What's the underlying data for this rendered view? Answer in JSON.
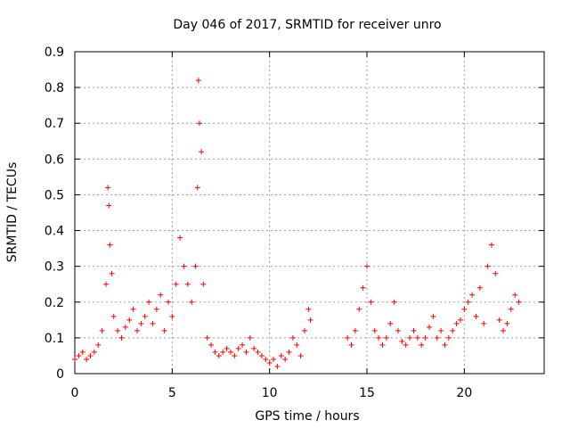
{
  "chart_data": {
    "type": "scatter",
    "title": "Day 046 of 2017, SRMTID for receiver unro",
    "xlabel": "GPS time / hours",
    "ylabel": "SRMTID / TECUs",
    "xlim": [
      0,
      24.1
    ],
    "ylim": [
      0,
      0.9
    ],
    "x_ticks": [
      0,
      5,
      10,
      15,
      20
    ],
    "x_tick_labels": [
      "0",
      "5",
      "10",
      "15",
      "20"
    ],
    "y_ticks": [
      0,
      0.1,
      0.2,
      0.3,
      0.4,
      0.5,
      0.6,
      0.7,
      0.8,
      0.9
    ],
    "y_tick_labels": [
      "0",
      "0.1",
      "0.2",
      "0.3",
      "0.4",
      "0.5",
      "0.6",
      "0.7",
      "0.8",
      "0.9"
    ],
    "grid": true,
    "marker": "+",
    "color": "#ff0000",
    "series": [
      {
        "name": "SRMTID",
        "x": [
          0.0,
          0.2,
          0.4,
          0.6,
          0.8,
          1.0,
          1.2,
          1.4,
          1.6,
          1.7,
          1.75,
          1.8,
          1.9,
          2.0,
          2.2,
          2.4,
          2.6,
          2.8,
          3.0,
          3.2,
          3.4,
          3.6,
          3.8,
          4.0,
          4.2,
          4.4,
          4.6,
          4.8,
          5.0,
          5.2,
          5.4,
          5.6,
          5.8,
          6.0,
          6.2,
          6.3,
          6.35,
          6.4,
          6.5,
          6.6,
          6.8,
          7.0,
          7.2,
          7.4,
          7.6,
          7.8,
          8.0,
          8.2,
          8.4,
          8.6,
          8.8,
          9.0,
          9.2,
          9.4,
          9.6,
          9.8,
          10.0,
          10.2,
          10.4,
          10.6,
          10.8,
          11.0,
          11.2,
          11.4,
          11.6,
          11.8,
          12.0,
          12.1,
          14.0,
          14.2,
          14.4,
          14.6,
          14.8,
          15.0,
          15.2,
          15.4,
          15.6,
          15.8,
          16.0,
          16.2,
          16.4,
          16.6,
          16.8,
          17.0,
          17.2,
          17.4,
          17.6,
          17.8,
          18.0,
          18.2,
          18.4,
          18.6,
          18.8,
          19.0,
          19.2,
          19.4,
          19.6,
          19.8,
          20.0,
          20.2,
          20.4,
          20.6,
          20.8,
          21.0,
          21.2,
          21.4,
          21.6,
          21.8,
          22.0,
          22.2,
          22.4,
          22.6,
          22.8
        ],
        "y": [
          0.04,
          0.05,
          0.06,
          0.04,
          0.05,
          0.06,
          0.08,
          0.12,
          0.25,
          0.52,
          0.47,
          0.36,
          0.28,
          0.16,
          0.12,
          0.1,
          0.13,
          0.15,
          0.18,
          0.12,
          0.14,
          0.16,
          0.2,
          0.14,
          0.18,
          0.22,
          0.12,
          0.2,
          0.16,
          0.25,
          0.38,
          0.3,
          0.25,
          0.2,
          0.3,
          0.52,
          0.82,
          0.7,
          0.62,
          0.25,
          0.1,
          0.08,
          0.06,
          0.05,
          0.06,
          0.07,
          0.06,
          0.05,
          0.07,
          0.08,
          0.06,
          0.1,
          0.07,
          0.06,
          0.05,
          0.04,
          0.03,
          0.04,
          0.02,
          0.05,
          0.04,
          0.06,
          0.1,
          0.08,
          0.05,
          0.12,
          0.18,
          0.15,
          0.1,
          0.08,
          0.12,
          0.18,
          0.24,
          0.3,
          0.2,
          0.12,
          0.1,
          0.08,
          0.1,
          0.14,
          0.2,
          0.12,
          0.09,
          0.08,
          0.1,
          0.12,
          0.1,
          0.08,
          0.1,
          0.13,
          0.16,
          0.1,
          0.12,
          0.08,
          0.1,
          0.12,
          0.14,
          0.15,
          0.18,
          0.2,
          0.22,
          0.16,
          0.24,
          0.14,
          0.3,
          0.36,
          0.28,
          0.15,
          0.12,
          0.14,
          0.18,
          0.22,
          0.2
        ]
      }
    ]
  }
}
